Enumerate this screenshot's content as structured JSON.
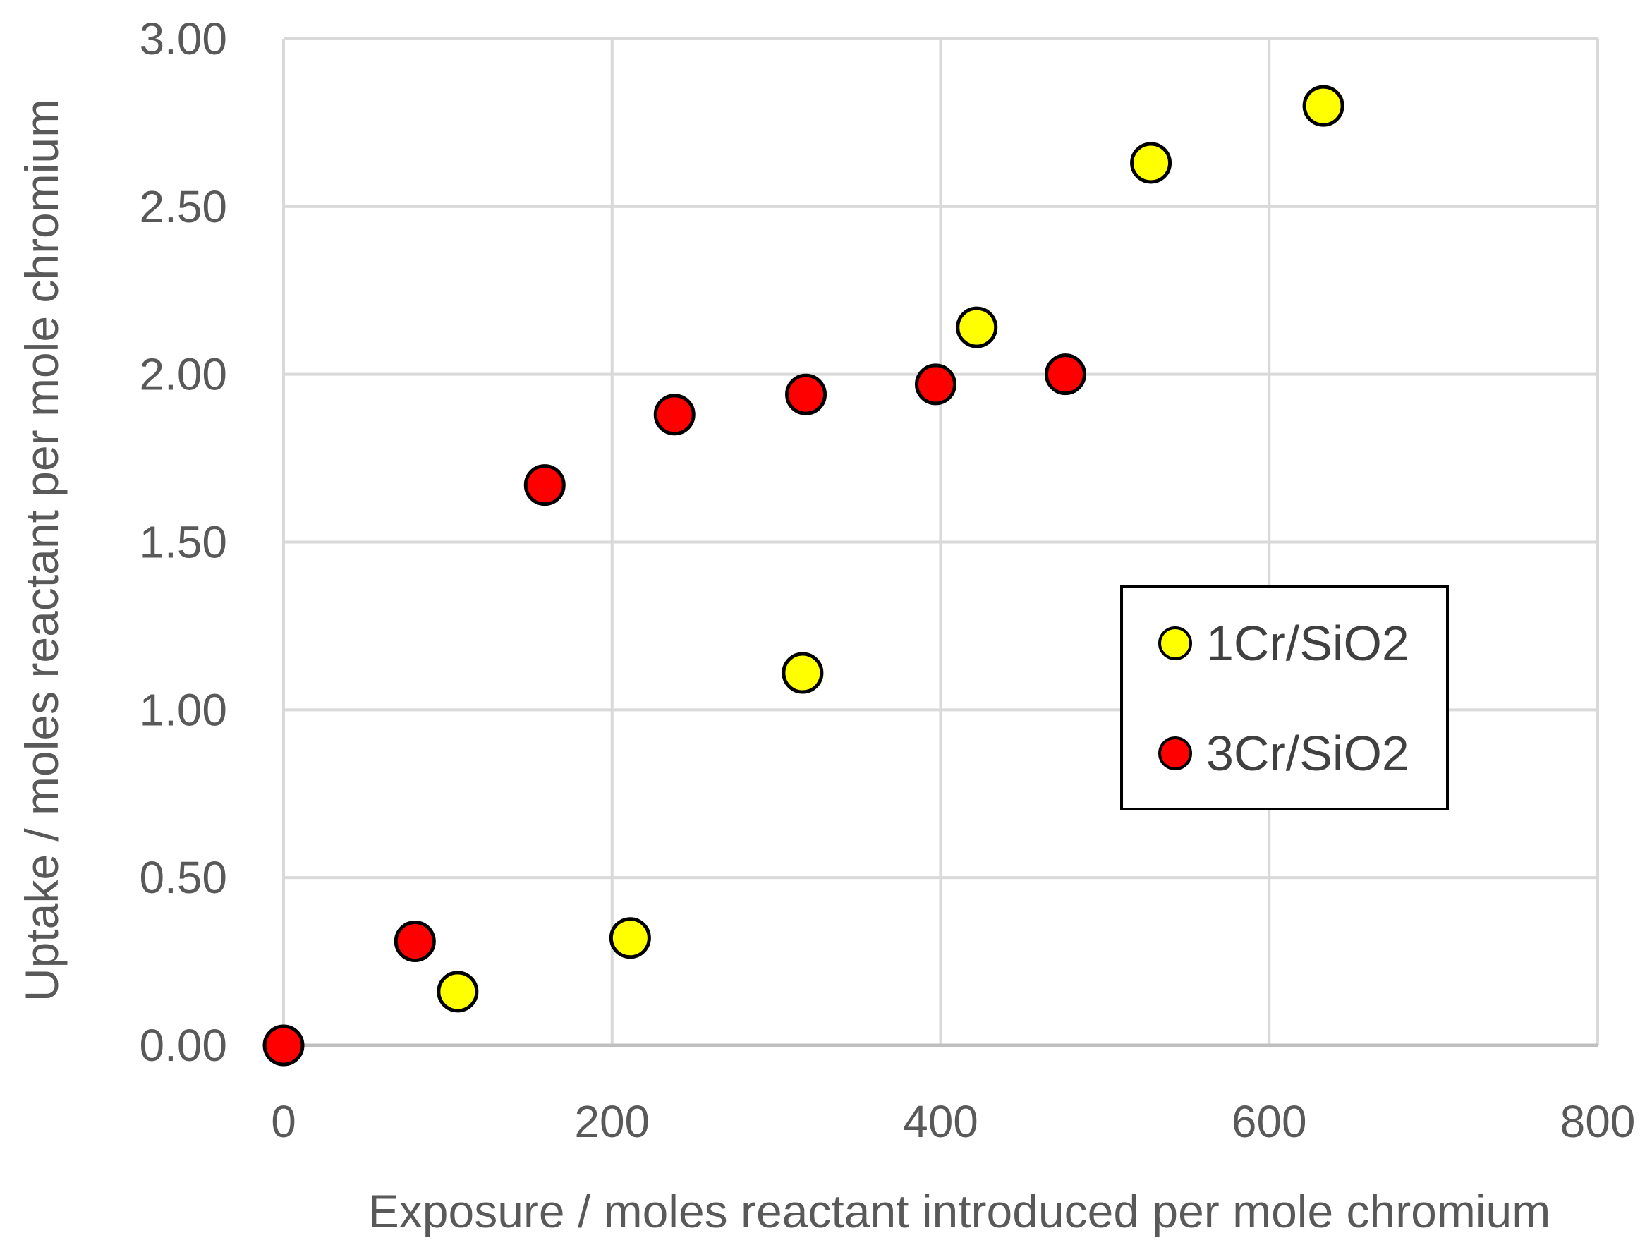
{
  "chart_data": {
    "type": "scatter",
    "title": "",
    "xlabel": "Exposure /  moles reactant introduced per mole chromium",
    "ylabel": "Uptake / moles reactant per mole chromium",
    "xlim": [
      0,
      800
    ],
    "ylim": [
      0,
      3
    ],
    "x_ticks": [
      0,
      200,
      400,
      600,
      800
    ],
    "x_tick_labels": [
      "0",
      "200",
      "400",
      "600",
      "800"
    ],
    "y_ticks": [
      0,
      0.5,
      1,
      1.5,
      2,
      2.5,
      3
    ],
    "y_tick_labels": [
      "0.00",
      "0.50",
      "1.00",
      "1.50",
      "2.00",
      "2.50",
      "3.00"
    ],
    "grid": true,
    "legend_position": "right-middle",
    "series": [
      {
        "name": "1Cr/SiO2",
        "color": "#ffff00",
        "points": [
          [
            106,
            0.16
          ],
          [
            211,
            0.32
          ],
          [
            316,
            1.11
          ],
          [
            422,
            2.14
          ],
          [
            528,
            2.63
          ],
          [
            633,
            2.8
          ]
        ]
      },
      {
        "name": "3Cr/SiO2",
        "color": "#ff0000",
        "points": [
          [
            0,
            0
          ],
          [
            80,
            0.31
          ],
          [
            159,
            1.67
          ],
          [
            238,
            1.88
          ],
          [
            318,
            1.94
          ],
          [
            397,
            1.97
          ],
          [
            476,
            2.0
          ]
        ]
      }
    ]
  }
}
